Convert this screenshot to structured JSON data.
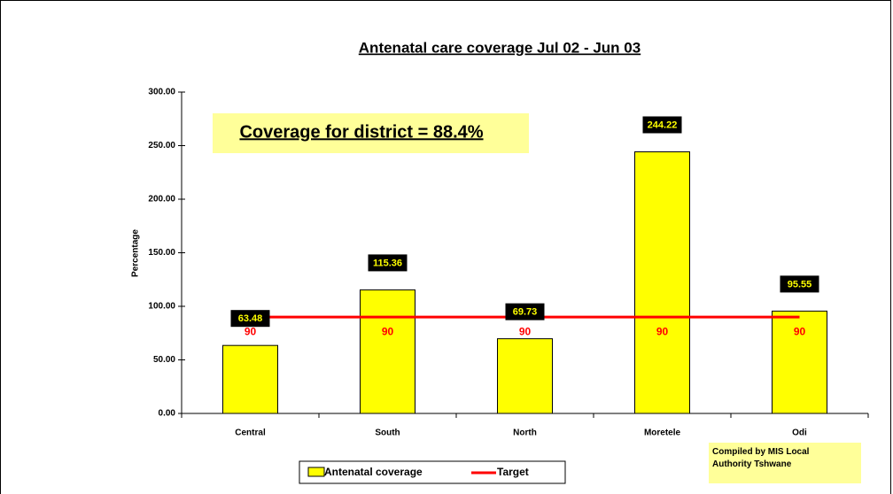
{
  "chart_data": {
    "type": "bar",
    "title": "Antenatal care coverage Jul 02 - Jun 03",
    "y_label": "Percentage",
    "annotations": [
      "Coverage for district = 88.4%",
      "Compiled by MIS Local Authority Tshwane"
    ],
    "categories": [
      "Central",
      "South",
      "North",
      "Moretele",
      "Odi"
    ],
    "series": [
      {
        "name": "Antenatal coverage",
        "type": "bar",
        "color": "#ffff00",
        "values": [
          63.48,
          115.36,
          69.73,
          244.22,
          95.55
        ]
      },
      {
        "name": "Target",
        "type": "line",
        "color": "#ff0000",
        "values": [
          90,
          90,
          90,
          90,
          90
        ]
      }
    ],
    "ylim": [
      0,
      300
    ],
    "yticks": [
      {
        "value": 0,
        "label": "0.00"
      },
      {
        "value": 50,
        "label": "50.00"
      },
      {
        "value": 100,
        "label": "100.00"
      },
      {
        "value": 150,
        "label": "150.00"
      },
      {
        "value": 200,
        "label": "200.00"
      },
      {
        "value": 250,
        "label": "250.00"
      },
      {
        "value": 300,
        "label": "300.00"
      }
    ],
    "grid": false,
    "legend": "bottom"
  }
}
